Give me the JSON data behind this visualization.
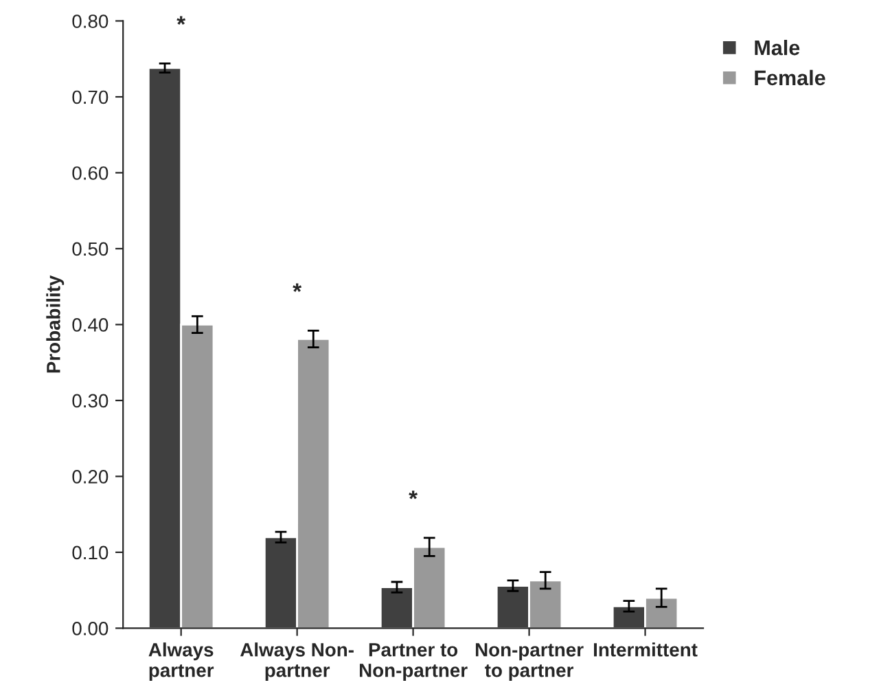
{
  "chart_data": {
    "type": "bar",
    "ylabel": "Probability",
    "categories": [
      "Always\npartner",
      "Always Non-\npartner",
      "Partner to\nNon-partner",
      "Non-partner\nto partner",
      "Intermittent"
    ],
    "series": [
      {
        "name": "Male",
        "color": "#404040",
        "values": [
          0.738,
          0.12,
          0.054,
          0.056,
          0.029
        ],
        "errors": [
          0.006,
          0.007,
          0.007,
          0.007,
          0.007
        ]
      },
      {
        "name": "Female",
        "color": "#999999",
        "values": [
          0.4,
          0.381,
          0.107,
          0.063,
          0.04
        ],
        "errors": [
          0.011,
          0.011,
          0.012,
          0.011,
          0.012
        ]
      }
    ],
    "ylim": [
      0,
      0.8
    ],
    "yticks": [
      {
        "value": 0,
        "label": "0.00"
      },
      {
        "value": 0.1,
        "label": "0.10"
      },
      {
        "value": 0.2,
        "label": "0.20"
      },
      {
        "value": 0.3,
        "label": "0.30"
      },
      {
        "value": 0.4,
        "label": "0.40"
      },
      {
        "value": 0.5,
        "label": "0.50"
      },
      {
        "value": 0.6,
        "label": "0.60"
      },
      {
        "value": 0.7,
        "label": "0.70"
      },
      {
        "value": 0.8,
        "label": "0.80"
      }
    ],
    "annotations": [
      "*",
      "*",
      "*"
    ],
    "grid": false,
    "legend": "top right"
  }
}
